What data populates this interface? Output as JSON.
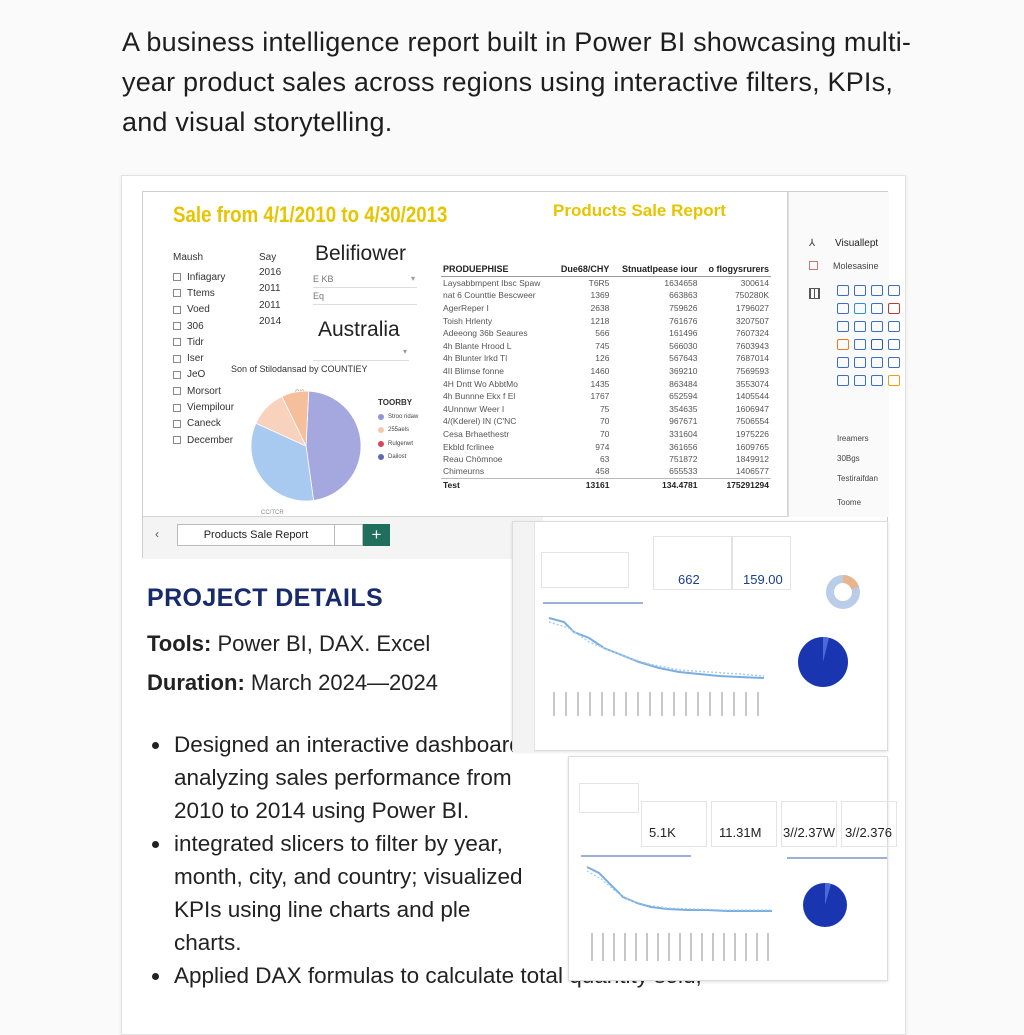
{
  "intro": "A business intelligence report built in Power BI showcasing multi-year product sales across regions using interactive filters, KPIs, and visual storytelling.",
  "report": {
    "sale_title": "Sale from 4/1/2010 to 4/30/2013",
    "products_title": "Products Sale Report",
    "month_header": "Maush",
    "year_header": "Say",
    "months": [
      "Infiagary",
      "Ttems",
      "Voed",
      "306",
      "Tidr",
      "Iser",
      "JeO",
      "Morsort",
      "Viempilour",
      "Caneck",
      "December"
    ],
    "years": [
      "2016",
      "2011",
      "2011",
      "2014"
    ],
    "city_label": "Belifiower",
    "city_field": "E KB",
    "city_field2": "Eq",
    "country_label": "Australia",
    "pie_title": "Son of Stilodansad by COUNTIEY",
    "pie_top_label": "C/3",
    "pie_bottom_label": "CC/TCR",
    "legend_title": "TOORBY",
    "legend": [
      {
        "label": "Stroo ridaw",
        "color": "#8f95d8"
      },
      {
        "label": "255aels",
        "color": "#f5c9a8"
      },
      {
        "label": "Rulgenwt",
        "color": "#d9455a"
      },
      {
        "label": "Dailost",
        "color": "#5c6ab8"
      }
    ],
    "pie_slices": [
      {
        "label": "Stroo ridaw",
        "value": 47,
        "color": "#a4a8df"
      },
      {
        "label": "Dailost",
        "value": 34,
        "color": "#a8c9f0"
      },
      {
        "label": "255aels",
        "value": 11,
        "color": "#f8d2bc"
      },
      {
        "label": "Rulgenwt",
        "value": 8,
        "color": "#f5bf9b"
      }
    ],
    "table": {
      "headers": [
        "PRODUEPHISE",
        "Due68/CHY",
        "Stnuatlpease iour",
        "o flogysrurers"
      ],
      "rows": [
        [
          "Laysabbmpent Ibsc Spaw",
          "T6R5",
          "1634658",
          "300614"
        ],
        [
          "nat 6 Counttie   Bescweer",
          "1369",
          "663863",
          "750280K"
        ],
        [
          "AgerReper   I",
          "2638",
          "759626",
          "1796027"
        ],
        [
          "Toish Hrlenty",
          "1218",
          "761676",
          "3207507"
        ],
        [
          "Adeeong  36b Seaures",
          "566",
          "161496",
          "7607324"
        ],
        [
          "4h Blante Hrood  L",
          "745",
          "566030",
          "7603943"
        ],
        [
          "4h Blunter lrkd  Tl",
          "126",
          "567643",
          "7687014"
        ],
        [
          "4II Blimse fonne",
          "1460",
          "369210",
          "7569593"
        ],
        [
          "4H Dntt Wo AbbtMo",
          "1435",
          "863484",
          "3553074"
        ],
        [
          "4h Bunnne Ekx f El",
          "1767",
          "652594",
          "1405544"
        ],
        [
          "4Unnnwr Weer  I",
          "75",
          "354635",
          "1606947"
        ],
        [
          "4/(Kderel) IN  (C'NC",
          "70",
          "967671",
          "7506554"
        ],
        [
          "Cesa Brhaethestr",
          "70",
          "331604",
          "1975226"
        ],
        [
          "Ekbld fcrlinee",
          "974",
          "361656",
          "1609765"
        ],
        [
          "Reau Chömnoe",
          "63",
          "751872",
          "1849912"
        ],
        [
          "Chimeurns",
          "458",
          "655533",
          "1406577"
        ]
      ],
      "total": [
        "Test",
        "13161",
        "134.4781",
        "175291294"
      ]
    },
    "viz_pane": {
      "header": "Visuallept",
      "sub": "Molesasine",
      "label1": "Ireamers",
      "label2": "30Bgs",
      "label3": "Testiraifdan",
      "label4": "Toome"
    },
    "tab_label": "Products Sale Report",
    "tab_add": "+",
    "tab_nav": "‹"
  },
  "project": {
    "heading": "PROJECT DETAILS",
    "tools_label": "Tools:",
    "tools_value": " Power BI, DAX. Excel",
    "duration_label": "Duration:",
    "duration_value": " March 2024—2024",
    "bullets": [
      "Designed an interactive dashboard analyzing sales performance from 2010 to 2014 using Power BI.",
      "integrated slicers to filter by year, month, city, and country; visualized KPIs using line charts and ple charts.",
      "Applied DAX formulas to calculate total quantity sold,"
    ]
  },
  "thumbnails": {
    "t1_kpi1": "662",
    "t1_kpi2": "159.00",
    "t2_kpi1": "5.1K",
    "t2_kpi2": "11.31M",
    "t2_kpi3": "3//2.37W",
    "t2_kpi4": "3//2.376"
  },
  "colors": {
    "title_yellow": "#e8c400",
    "heading_navy": "#172a6b",
    "tab_green": "#1f6f5c",
    "line_blue": "#7aaee0",
    "pie_blue": "#1a35b0"
  }
}
